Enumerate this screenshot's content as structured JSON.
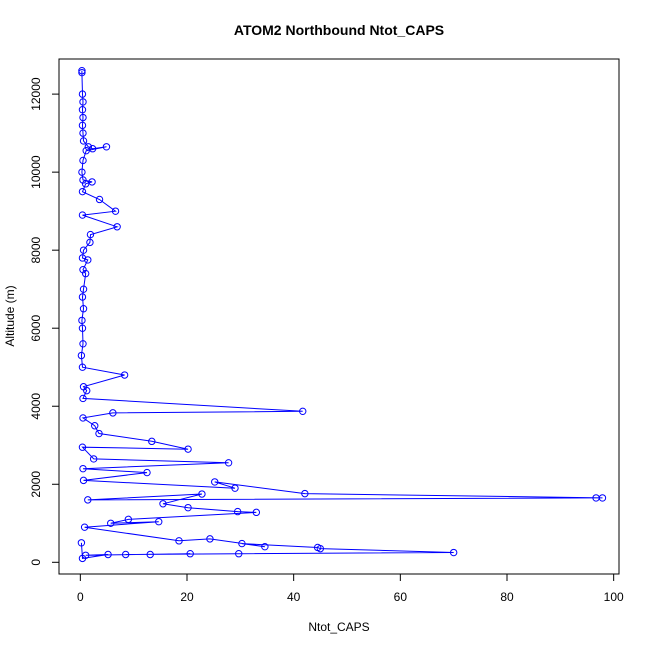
{
  "chart_data": {
    "type": "scatter",
    "title": "ATOM2 Northbound Ntot_CAPS",
    "xlabel": "Ntot_CAPS",
    "ylabel": "Altitude (m)",
    "xlim": [
      -4,
      101
    ],
    "ylim": [
      -300,
      12900
    ],
    "xticks": [
      0,
      20,
      40,
      60,
      80,
      100
    ],
    "yticks": [
      0,
      2000,
      4000,
      6000,
      8000,
      10000,
      12000
    ],
    "grid": false,
    "legend": "none",
    "color": "#0000ff",
    "series": [
      {
        "name": "",
        "mode": "lines+markers",
        "points": [
          [
            0.3,
            12600
          ],
          [
            0.3,
            12550
          ],
          [
            0.4,
            12000
          ],
          [
            0.5,
            11800
          ],
          [
            0.4,
            11600
          ],
          [
            0.5,
            11400
          ],
          [
            0.4,
            11200
          ],
          [
            0.5,
            11000
          ],
          [
            0.6,
            10800
          ],
          [
            1.5,
            10650
          ],
          [
            2.3,
            10600
          ],
          [
            4.9,
            10650
          ],
          [
            1.1,
            10550
          ],
          [
            0.5,
            10300
          ],
          [
            0.3,
            10000
          ],
          [
            0.5,
            9800
          ],
          [
            2.2,
            9750
          ],
          [
            1.0,
            9700
          ],
          [
            0.4,
            9500
          ],
          [
            3.6,
            9300
          ],
          [
            6.6,
            9000
          ],
          [
            0.4,
            8900
          ],
          [
            6.9,
            8600
          ],
          [
            1.9,
            8400
          ],
          [
            1.8,
            8200
          ],
          [
            0.6,
            8000
          ],
          [
            0.4,
            7800
          ],
          [
            1.4,
            7750
          ],
          [
            0.5,
            7500
          ],
          [
            1.0,
            7400
          ],
          [
            0.6,
            7000
          ],
          [
            0.4,
            6800
          ],
          [
            0.6,
            6500
          ],
          [
            0.3,
            6200
          ],
          [
            0.4,
            6000
          ],
          [
            0.5,
            5600
          ],
          [
            0.2,
            5300
          ],
          [
            0.4,
            5000
          ],
          [
            8.3,
            4800
          ],
          [
            0.6,
            4500
          ],
          [
            1.2,
            4400
          ],
          [
            0.5,
            4200
          ],
          [
            41.7,
            3870
          ],
          [
            6.1,
            3830
          ],
          [
            0.5,
            3700
          ],
          [
            2.7,
            3500
          ],
          [
            3.5,
            3300
          ],
          [
            13.4,
            3100
          ],
          [
            20.2,
            2900
          ],
          [
            0.4,
            2950
          ],
          [
            2.5,
            2650
          ],
          [
            27.8,
            2550
          ],
          [
            0.5,
            2400
          ],
          [
            12.5,
            2300
          ],
          [
            0.6,
            2100
          ],
          [
            29.0,
            1900
          ],
          [
            25.2,
            2060
          ],
          [
            42.1,
            1760
          ],
          [
            97.9,
            1650
          ],
          [
            96.7,
            1650
          ],
          [
            1.4,
            1600
          ],
          [
            22.8,
            1750
          ],
          [
            15.5,
            1500
          ],
          [
            20.2,
            1400
          ],
          [
            29.5,
            1300
          ],
          [
            33.0,
            1280
          ],
          [
            9.0,
            1100
          ],
          [
            5.7,
            1000
          ],
          [
            14.7,
            1040
          ],
          [
            0.8,
            900
          ],
          [
            18.5,
            550
          ],
          [
            24.3,
            600
          ],
          [
            34.6,
            400
          ],
          [
            30.3,
            480
          ],
          [
            44.5,
            380
          ],
          [
            45.0,
            350
          ],
          [
            70.0,
            250
          ],
          [
            29.7,
            220
          ],
          [
            8.5,
            200
          ],
          [
            13.1,
            200
          ],
          [
            20.6,
            220
          ],
          [
            1.0,
            180
          ],
          [
            5.2,
            200
          ],
          [
            0.4,
            100
          ],
          [
            0.2,
            500
          ]
        ]
      }
    ]
  }
}
